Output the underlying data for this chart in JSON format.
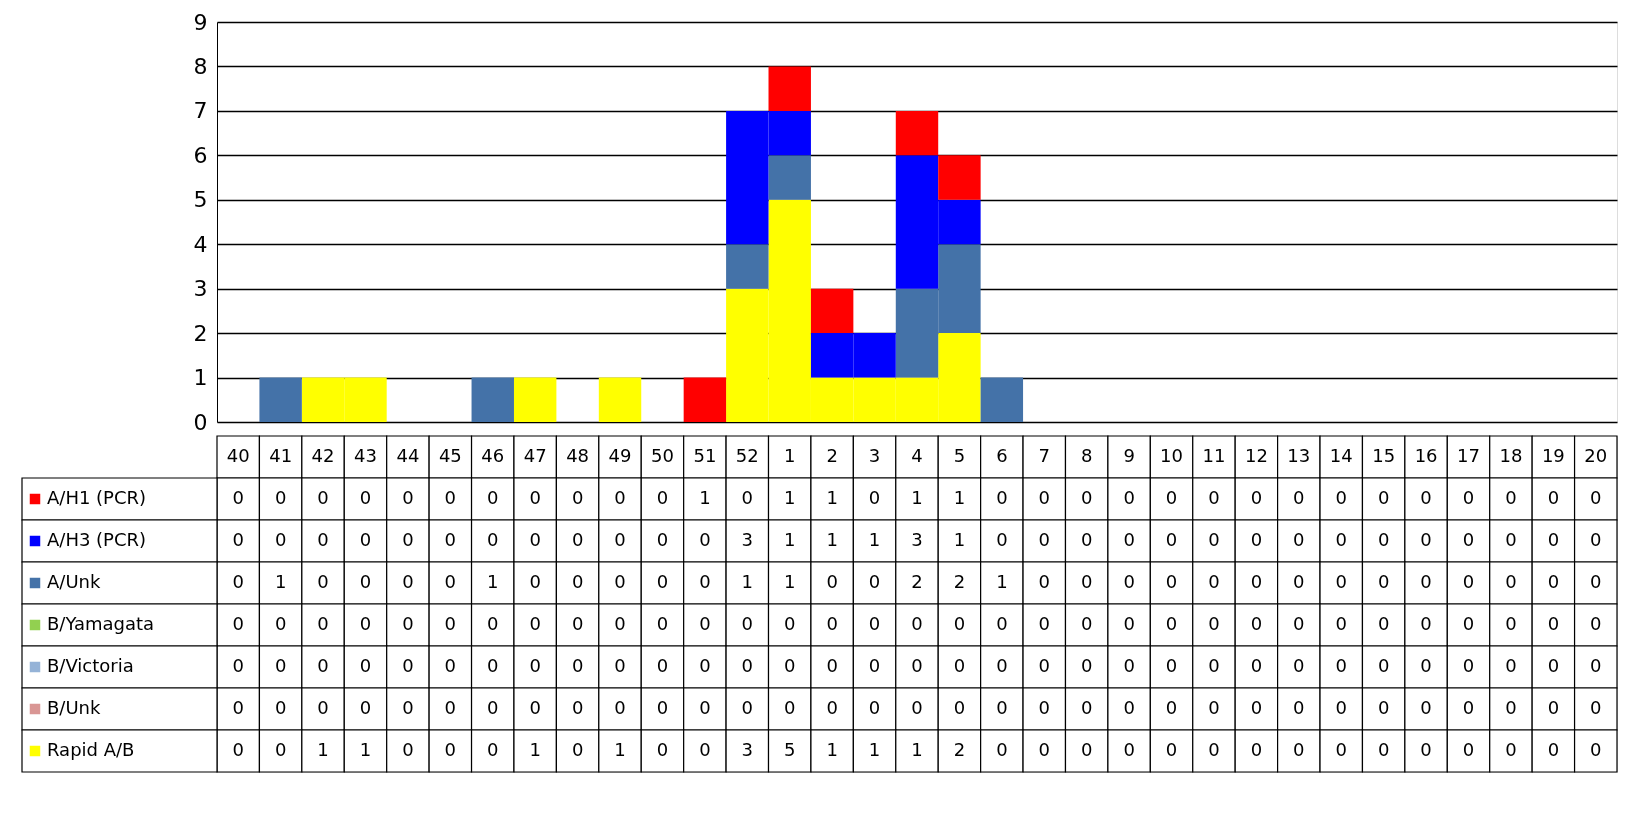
{
  "chart_data": {
    "type": "bar",
    "stacked": true,
    "grid": "y",
    "legend": "bottom left",
    "ylim": [
      0,
      9
    ],
    "yticks": [
      0,
      1,
      2,
      3,
      4,
      5,
      6,
      7,
      8,
      9
    ],
    "categories": [
      "40",
      "41",
      "42",
      "43",
      "44",
      "45",
      "46",
      "47",
      "48",
      "49",
      "50",
      "51",
      "52",
      "1",
      "2",
      "3",
      "4",
      "5",
      "6",
      "7",
      "8",
      "9",
      "10",
      "11",
      "12",
      "13",
      "14",
      "15",
      "16",
      "17",
      "18",
      "19",
      "20"
    ],
    "series": [
      {
        "name": "Rapid A/B",
        "color": "#ffff00",
        "values": [
          0,
          0,
          1,
          1,
          0,
          0,
          0,
          1,
          0,
          1,
          0,
          0,
          3,
          5,
          1,
          1,
          1,
          2,
          0,
          0,
          0,
          0,
          0,
          0,
          0,
          0,
          0,
          0,
          0,
          0,
          0,
          0,
          0
        ],
        "value_labels": [
          "0",
          "0",
          "1",
          "1",
          "0",
          "0",
          "0",
          "1",
          "0",
          "1",
          "0",
          "0",
          "3",
          "5",
          "1",
          "1",
          "1",
          "2",
          "0",
          "0",
          "0",
          "0",
          "0",
          "0",
          "0",
          "0",
          "0",
          "0",
          "0",
          "0",
          "0",
          "0",
          "0"
        ]
      },
      {
        "name": "B/Unk",
        "color": "#d99694",
        "values": [
          0,
          0,
          0,
          0,
          0,
          0,
          0,
          0,
          0,
          0,
          0,
          0,
          0,
          0,
          0,
          0,
          0,
          0,
          0,
          0,
          0,
          0,
          0,
          0,
          0,
          0,
          0,
          0,
          0,
          0,
          0,
          0,
          0
        ],
        "value_labels": [
          "0",
          "0",
          "0",
          "0",
          "0",
          "0",
          "0",
          "0",
          "0",
          "0",
          "0",
          "0",
          "0",
          "0",
          "0",
          "0",
          "0",
          "0",
          "0",
          "0",
          "0",
          "0",
          "0",
          "0",
          "0",
          "0",
          "0",
          "0",
          "0",
          "0",
          "0",
          "0",
          "0"
        ]
      },
      {
        "name": "B/Victoria",
        "color": "#95b3d7",
        "values": [
          0,
          0,
          0,
          0,
          0,
          0,
          0,
          0,
          0,
          0,
          0,
          0,
          0,
          0,
          0,
          0,
          0,
          0,
          0,
          0,
          0,
          0,
          0,
          0,
          0,
          0,
          0,
          0,
          0,
          0,
          0,
          0,
          0
        ],
        "value_labels": [
          "0",
          "0",
          "0",
          "0",
          "0",
          "0",
          "0",
          "0",
          "0",
          "0",
          "0",
          "0",
          "0",
          "0",
          "0",
          "0",
          "0",
          "0",
          "0",
          "0",
          "0",
          "0",
          "0",
          "0",
          "0",
          "0",
          "0",
          "0",
          "0",
          "0",
          "0",
          "0",
          "0"
        ]
      },
      {
        "name": "B/Yamagata",
        "color": "#92d050",
        "values": [
          0,
          0,
          0,
          0,
          0,
          0,
          0,
          0,
          0,
          0,
          0,
          0,
          0,
          0,
          0,
          0,
          0,
          0,
          0,
          0,
          0,
          0,
          0,
          0,
          0,
          0,
          0,
          0,
          0,
          0,
          0,
          0,
          0
        ],
        "value_labels": [
          "0",
          "0",
          "0",
          "0",
          "0",
          "0",
          "0",
          "0",
          "0",
          "0",
          "0",
          "0",
          "0",
          "0",
          "0",
          "0",
          "0",
          "0",
          "0",
          "0",
          "0",
          "0",
          "0",
          "0",
          "0",
          "0",
          "0",
          "0",
          "0",
          "0",
          "0",
          "0",
          "0"
        ]
      },
      {
        "name": "A/Unk",
        "color": "#4472a8",
        "values": [
          0,
          1,
          0,
          0,
          0,
          0,
          1,
          0,
          0,
          0,
          0,
          0,
          1,
          1,
          0,
          0,
          2,
          2,
          1,
          0,
          0,
          0,
          0,
          0,
          0,
          0,
          0,
          0,
          0,
          0,
          0,
          0,
          0
        ],
        "value_labels": [
          "0",
          "1",
          "0",
          "0",
          "0",
          "0",
          "1",
          "0",
          "0",
          "0",
          "0",
          "0",
          "1",
          "1",
          "0",
          "0",
          "2",
          "2",
          "1",
          "0",
          "0",
          "0",
          "0",
          "0",
          "0",
          "0",
          "0",
          "0",
          "0",
          "0",
          "0",
          "0",
          "0"
        ]
      },
      {
        "name": "A/H3 (PCR)",
        "color": "#0000ff",
        "values": [
          0,
          0,
          0,
          0,
          0,
          0,
          0,
          0,
          0,
          0,
          0,
          0,
          3,
          1,
          1,
          1,
          3,
          1,
          0,
          0,
          0,
          0,
          0,
          0,
          0,
          0,
          0,
          0,
          0,
          0,
          0,
          0,
          0
        ],
        "value_labels": [
          "0",
          "0",
          "0",
          "0",
          "0",
          "0",
          "0",
          "0",
          "0",
          "0",
          "0",
          "0",
          "3",
          "1",
          "1",
          "1",
          "3",
          "1",
          "0",
          "0",
          "0",
          "0",
          "0",
          "0",
          "0",
          "0",
          "0",
          "0",
          "0",
          "0",
          "0",
          "0",
          "0"
        ]
      },
      {
        "name": "A/H1 (PCR)",
        "color": "#ff0000",
        "values": [
          0,
          0,
          0,
          0,
          0,
          0,
          0,
          0,
          0,
          0,
          0,
          1,
          0,
          1,
          1,
          0,
          1,
          1,
          0,
          0,
          0,
          0,
          0,
          0,
          0,
          0,
          0,
          0,
          0,
          0,
          0,
          0,
          0
        ],
        "value_labels": [
          "0",
          "0",
          "0",
          "0",
          "0",
          "0",
          "0",
          "0",
          "0",
          "0",
          "0",
          "1",
          "0",
          "1",
          "1",
          "0",
          "1",
          "1",
          "0",
          "0",
          "0",
          "0",
          "0",
          "0",
          "0",
          "0",
          "0",
          "0",
          "0",
          "0",
          "0",
          "0",
          "0"
        ]
      }
    ]
  }
}
